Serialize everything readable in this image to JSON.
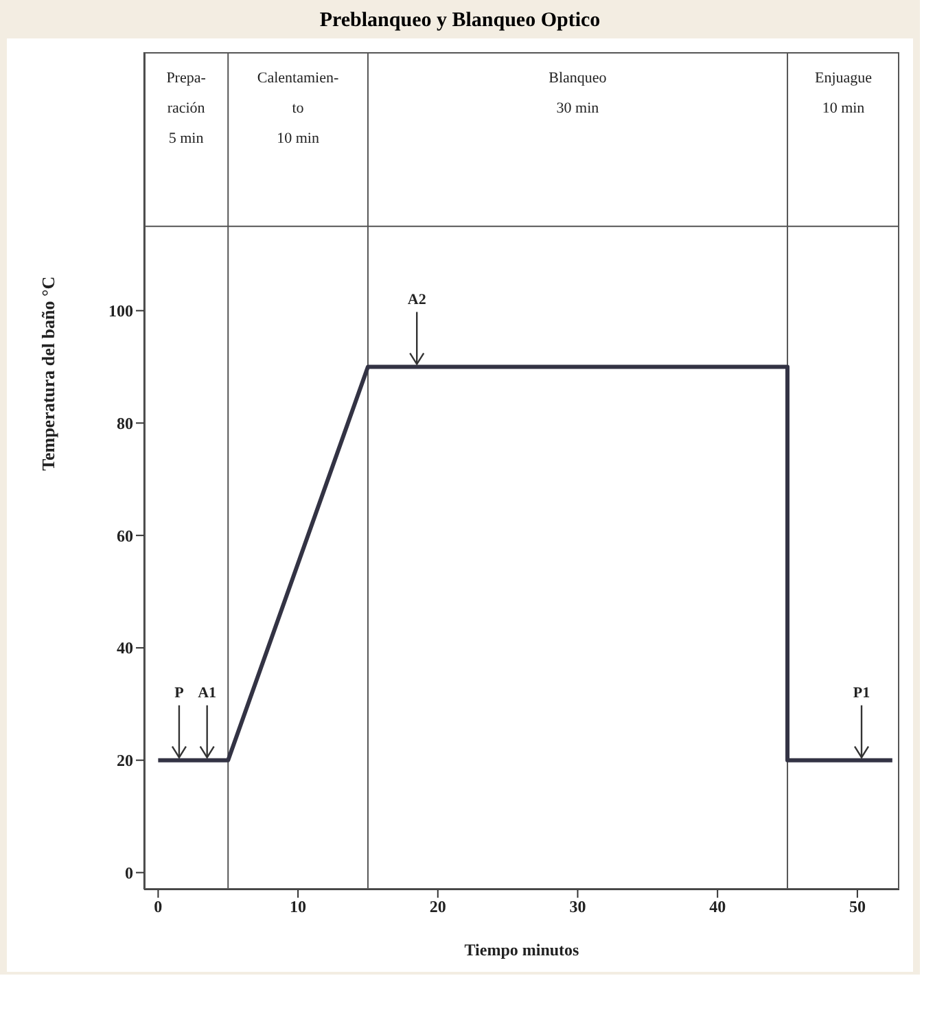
{
  "chart_data": {
    "type": "line",
    "title": "Preblanqueo y Blanqueo Optico",
    "xlabel": "Tiempo minutos",
    "ylabel": "Temperatura del baño °C",
    "series": [
      {
        "x": [
          0,
          5,
          15,
          45,
          45,
          52.5
        ],
        "values": [
          20,
          20,
          90,
          90,
          20,
          20
        ],
        "color": "#333344"
      }
    ],
    "xlim": [
      -1,
      53
    ],
    "xticks": [
      0,
      10,
      20,
      30,
      40,
      50
    ],
    "ylim": [
      -3,
      146
    ],
    "yticks": [
      0,
      20,
      40,
      60,
      80,
      100
    ],
    "ref_lines": [
      {
        "axis": "x",
        "value": 5
      },
      {
        "axis": "x",
        "value": 15
      },
      {
        "axis": "x",
        "value": 45
      },
      {
        "axis": "y",
        "value": 115
      }
    ],
    "annotations": [
      "Prepa-\nración\n5 min",
      "Calentamien-\nto\n10 min",
      "Blanqueo\n\n30 min",
      "Enjuague\n\n10 min",
      {
        "text": "P",
        "x": 1.5,
        "y": 20
      },
      {
        "text": "A1",
        "x": 3.5,
        "y": 20
      },
      {
        "text": "A2",
        "x": 18.5,
        "y": 90
      },
      {
        "text": "P1",
        "x": 50.3,
        "y": 20
      }
    ],
    "grid": false,
    "legend": false,
    "marker": "none",
    "line_style": "solid"
  }
}
